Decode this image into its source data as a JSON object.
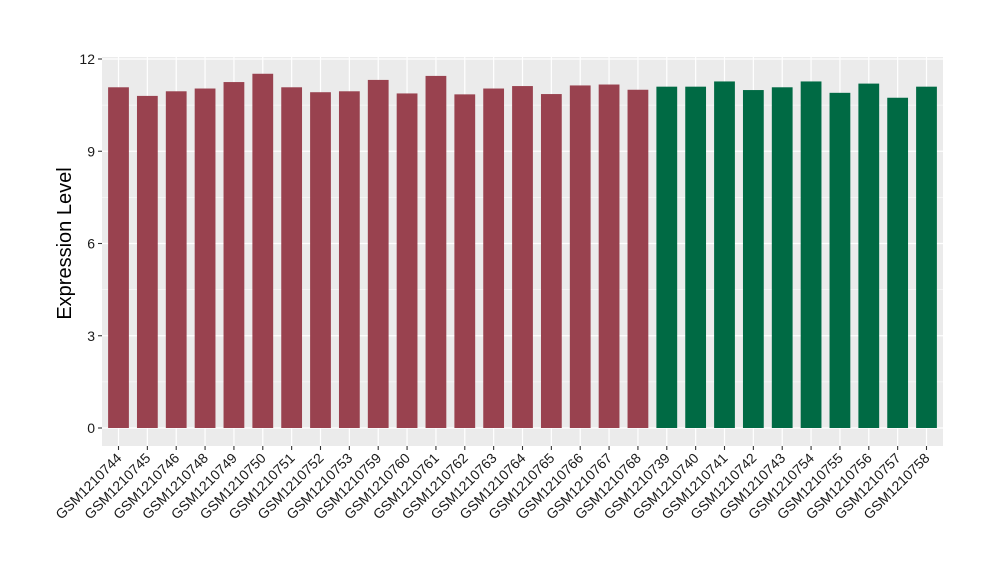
{
  "chart_data": {
    "type": "bar",
    "ylabel": "Expression Level",
    "xlabel": "",
    "ylim": [
      0,
      12
    ],
    "yticks": [
      0,
      3,
      6,
      9,
      12
    ],
    "grid": true,
    "categories": [
      "GSM1210744",
      "GSM1210745",
      "GSM1210746",
      "GSM1210748",
      "GSM1210749",
      "GSM1210750",
      "GSM1210751",
      "GSM1210752",
      "GSM1210753",
      "GSM1210759",
      "GSM1210760",
      "GSM1210761",
      "GSM1210762",
      "GSM1210763",
      "GSM1210764",
      "GSM1210765",
      "GSM1210766",
      "GSM1210767",
      "GSM1210768",
      "GSM1210739",
      "GSM1210740",
      "GSM1210741",
      "GSM1210742",
      "GSM1210743",
      "GSM1210754",
      "GSM1210755",
      "GSM1210756",
      "GSM1210757",
      "GSM1210758"
    ],
    "values": [
      11.08,
      10.8,
      10.95,
      11.04,
      11.25,
      11.52,
      11.08,
      10.92,
      10.95,
      11.32,
      10.88,
      11.45,
      10.85,
      11.04,
      11.12,
      10.86,
      11.14,
      11.17,
      11.0,
      11.1,
      11.1,
      11.27,
      10.99,
      11.08,
      11.27,
      10.9,
      11.2,
      10.74,
      11.1
    ],
    "groups": [
      0,
      0,
      0,
      0,
      0,
      0,
      0,
      0,
      0,
      0,
      0,
      0,
      0,
      0,
      0,
      0,
      0,
      0,
      0,
      1,
      1,
      1,
      1,
      1,
      1,
      1,
      1,
      1,
      1
    ],
    "group_colors": [
      "#99424f",
      "#006a44"
    ],
    "panel_background": "#ebebeb",
    "grid_color": "#ffffff"
  }
}
